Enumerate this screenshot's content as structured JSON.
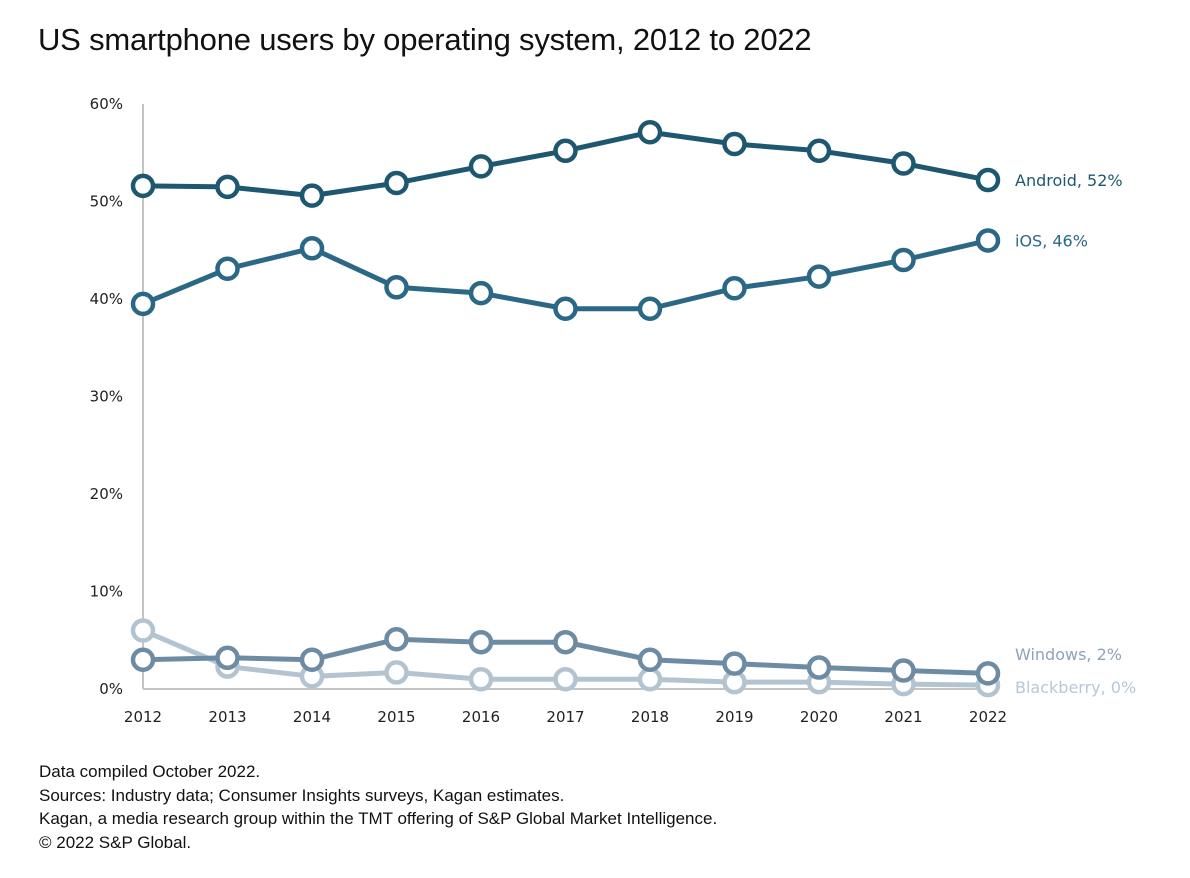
{
  "chart_data": {
    "type": "line",
    "title": "US smartphone users by operating system, 2012 to 2022",
    "xlabel": "",
    "ylabel": "",
    "x": [
      "2012",
      "2013",
      "2014",
      "2015",
      "2016",
      "2017",
      "2018",
      "2019",
      "2020",
      "2021",
      "2022"
    ],
    "ylim": [
      0,
      60
    ],
    "yticks": [
      "0%",
      "10%",
      "20%",
      "30%",
      "40%",
      "50%",
      "60%"
    ],
    "ytick_values": [
      0,
      10,
      20,
      30,
      40,
      50,
      60
    ],
    "grid": false,
    "legend": "direct-labels-right",
    "series": [
      {
        "name": "Android",
        "end_label": "Android, 52%",
        "color": "#1e5870",
        "values": [
          51.6,
          51.5,
          50.6,
          51.9,
          53.6,
          55.2,
          57.1,
          55.9,
          55.2,
          53.9,
          52.2
        ]
      },
      {
        "name": "iOS",
        "end_label": "iOS, 46%",
        "color": "#2b6886",
        "values": [
          39.5,
          43.1,
          45.2,
          41.2,
          40.6,
          39.0,
          39.0,
          41.1,
          42.3,
          44.0,
          46.0
        ]
      },
      {
        "name": "Windows",
        "end_label": "Windows, 2%",
        "color": "#6d8ba3",
        "label_color": "#8ea3ba",
        "values": [
          3.0,
          3.2,
          3.0,
          5.1,
          4.8,
          4.8,
          3.0,
          2.6,
          2.2,
          1.9,
          1.6
        ]
      },
      {
        "name": "Blackberry",
        "end_label": "Blackberry, 0%",
        "color": "#b3c4d0",
        "label_color": "#b9c7d4",
        "values": [
          6.0,
          2.3,
          1.3,
          1.7,
          1.0,
          1.0,
          1.0,
          0.7,
          0.7,
          0.5,
          0.4
        ]
      }
    ]
  },
  "footer": {
    "lines": [
      "Data compiled October 2022.",
      "Sources: Industry data; Consumer Insights surveys, Kagan estimates.",
      "Kagan, a media research group within the TMT offering of S&P Global Market Intelligence.",
      "© 2022 S&P Global."
    ]
  }
}
